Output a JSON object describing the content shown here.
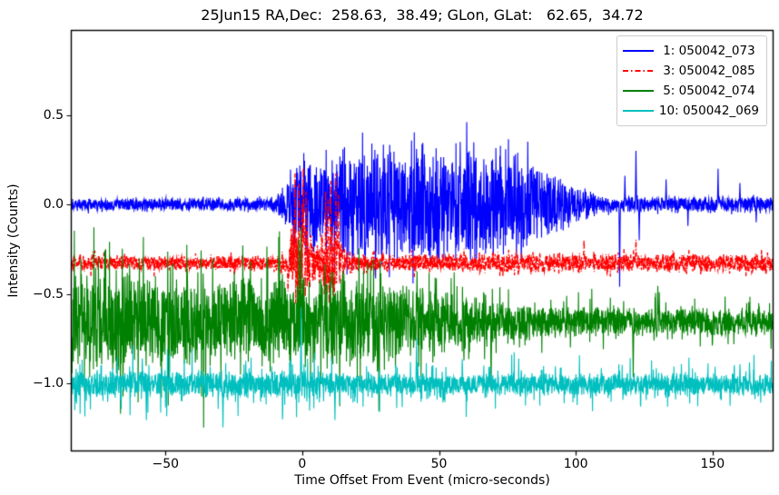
{
  "figure": {
    "background": "#ffffff",
    "axes_color": "#000000"
  },
  "chart_data": {
    "type": "line",
    "title": "25Jun15 RA,Dec:  258.63,  38.49; GLon, GLat:   62.65,  34.72",
    "xlabel": "Time Offset From Event (micro-seconds)",
    "ylabel": "Intensity (Counts)",
    "xlim": [
      -84.6,
      172.3
    ],
    "ylim": [
      -1.38,
      0.975
    ],
    "xticks": [
      {
        "v": -50,
        "label": "−50"
      },
      {
        "v": 0,
        "label": "0"
      },
      {
        "v": 50,
        "label": "50"
      },
      {
        "v": 100,
        "label": "100"
      },
      {
        "v": 150,
        "label": "150"
      }
    ],
    "yticks": [
      {
        "v": 0.5,
        "label": "0.5"
      },
      {
        "v": 0.0,
        "label": "0.0"
      },
      {
        "v": -0.5,
        "label": "−0.5"
      },
      {
        "v": -1.0,
        "label": "−1.0"
      }
    ],
    "grid": false,
    "legend_position": "upper right",
    "series": [
      {
        "name": " 1: 050042_073",
        "color": "#0000ff",
        "linestyle": "solid",
        "baseline": 0.0,
        "seed": 101,
        "tail": {
          "amp": 0.55,
          "pow": 9
        },
        "noise_envelope": [
          [
            -84.6,
            0.038
          ],
          [
            -10,
            0.038
          ],
          [
            -8,
            0.09
          ],
          [
            -5,
            0.17
          ],
          [
            -2,
            0.26
          ],
          [
            0,
            0.31
          ],
          [
            10,
            0.33
          ],
          [
            25,
            0.37
          ],
          [
            65,
            0.37
          ],
          [
            75,
            0.33
          ],
          [
            85,
            0.26
          ],
          [
            95,
            0.17
          ],
          [
            104,
            0.1
          ],
          [
            110,
            0.055
          ],
          [
            115,
            0.045
          ],
          [
            172.3,
            0.045
          ]
        ],
        "spikes": [
          {
            "t": 116,
            "dv": -0.46
          },
          {
            "t": 118,
            "dv": 0.16
          },
          {
            "t": 122,
            "dv": 0.3
          },
          {
            "t": 123.2,
            "dv": -0.2
          },
          {
            "t": 133,
            "dv": 0.14
          },
          {
            "t": 141,
            "dv": -0.12
          },
          {
            "t": 152,
            "dv": 0.2
          },
          {
            "t": 160,
            "dv": 0.12
          },
          {
            "t": 166,
            "dv": -0.1
          }
        ]
      },
      {
        "name": " 3: 050042_085",
        "color": "#ff0000",
        "linestyle": "dashdot",
        "baseline": -0.327,
        "seed": 202,
        "tail": {
          "amp": 0.9,
          "pow": 9
        },
        "noise_envelope": [
          [
            -84.6,
            0.045
          ],
          [
            -7,
            0.045
          ],
          [
            -5,
            0.14
          ],
          [
            -3,
            0.26
          ],
          [
            -1,
            0.3
          ],
          [
            1,
            0.28
          ],
          [
            3,
            0.18
          ],
          [
            5,
            0.1
          ],
          [
            7,
            0.2
          ],
          [
            9,
            0.27
          ],
          [
            12,
            0.27
          ],
          [
            14,
            0.16
          ],
          [
            16,
            0.08
          ],
          [
            20,
            0.055
          ],
          [
            172.3,
            0.055
          ]
        ],
        "spikes": [
          {
            "t": -2.6,
            "dv": 0.5
          },
          {
            "t": -1.2,
            "dv": 0.44
          },
          {
            "t": 0.4,
            "dv": 0.53
          },
          {
            "t": 1.4,
            "dv": 0.4
          },
          {
            "t": 8.6,
            "dv": 0.4
          },
          {
            "t": 10.4,
            "dv": 0.46
          },
          {
            "t": 12.3,
            "dv": 0.5
          },
          {
            "t": 13.2,
            "dv": 0.38
          },
          {
            "t": 103,
            "dv": 0.13
          },
          {
            "t": 122,
            "dv": 0.13
          }
        ]
      },
      {
        "name": " 5: 050042_074",
        "color": "#008000",
        "linestyle": "solid",
        "baseline": -0.655,
        "seed": 303,
        "tail": {
          "amp": 1.35,
          "pow": 9
        },
        "noise_envelope": [
          [
            -84.6,
            0.27
          ],
          [
            20,
            0.27
          ],
          [
            32,
            0.23
          ],
          [
            45,
            0.18
          ],
          [
            60,
            0.14
          ],
          [
            75,
            0.11
          ],
          [
            90,
            0.09
          ],
          [
            172.3,
            0.082
          ]
        ],
        "spikes": [
          {
            "t": -0.5,
            "dv": 0.53
          },
          {
            "t": 28,
            "dv": -0.5
          },
          {
            "t": 42,
            "dv": 0.28
          },
          {
            "t": 69,
            "dv": -0.38
          },
          {
            "t": 121,
            "dv": -0.31
          },
          {
            "t": 130,
            "dv": 0.2
          }
        ]
      },
      {
        "name": "10: 050042_069",
        "color": "#00bfbf",
        "linestyle": "solid",
        "baseline": -1.005,
        "seed": 404,
        "tail": {
          "amp": 2.2,
          "pow": 12
        },
        "noise_envelope": [
          [
            -84.6,
            0.08
          ],
          [
            0,
            0.078
          ],
          [
            15,
            0.068
          ],
          [
            172.3,
            0.065
          ]
        ],
        "spikes": [
          {
            "t": -0.4,
            "dv": 0.43
          },
          {
            "t": 41.8,
            "dv": 0.26
          },
          {
            "t": -29,
            "dv": -0.24
          },
          {
            "t": -57,
            "dv": -0.2
          },
          {
            "t": 12,
            "dv": -0.2
          }
        ]
      }
    ]
  }
}
